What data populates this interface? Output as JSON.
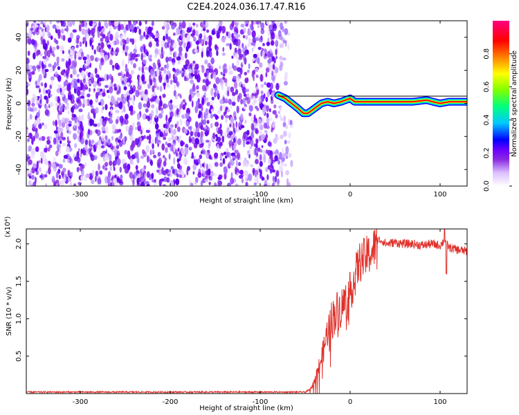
{
  "title": "C2E4.2024.036.17.47.R16",
  "chart_data": [
    {
      "type": "heatmap",
      "xlabel": "Height of straight line (km)",
      "ylabel": "Frequency (Hz)",
      "xlim": [
        -360,
        130
      ],
      "ylim": [
        -50,
        50
      ],
      "xticks": [
        -300,
        -200,
        -100,
        0,
        100
      ],
      "yticks": [
        -40,
        -20,
        0,
        20,
        40
      ],
      "noise_region": [
        -360,
        -65
      ],
      "signal_track": {
        "x": [
          -80,
          -72,
          -65,
          -58,
          -52,
          -47,
          -42,
          -37,
          -32,
          -25,
          -18,
          -10,
          -5,
          0,
          5,
          15,
          30,
          50,
          70,
          85,
          92,
          100,
          110,
          130
        ],
        "freq": [
          5,
          3,
          0,
          -3,
          -6,
          -6,
          -4,
          -2,
          0,
          1,
          0,
          1,
          2,
          3,
          1,
          1,
          1,
          1,
          1,
          2,
          1,
          0,
          1,
          1
        ]
      },
      "colorbar": {
        "label": "Normalized spectral amplitude",
        "range": [
          0,
          1
        ],
        "ticks": [
          "0.0",
          "0.2",
          "0.4",
          "0.6",
          "0.8"
        ],
        "colors": [
          "#ffffff",
          "#dcc0ff",
          "#8a2be2",
          "#6a00ff",
          "#0000ff",
          "#00c8ff",
          "#00ff80",
          "#80ff00",
          "#ffff00",
          "#ff8000",
          "#ff0000",
          "#ff0080"
        ]
      }
    },
    {
      "type": "line",
      "xlabel": "Height of straight line (km)",
      "ylabel": "SNR (10 * v/v)",
      "scale_label": "(x10⁴)",
      "xlim": [
        -360,
        130
      ],
      "ylim": [
        0,
        2.2
      ],
      "xticks": [
        -300,
        -200,
        -100,
        0,
        100
      ],
      "yticks": [
        0.5,
        1.0,
        1.5,
        2.0
      ],
      "yticklabels": [
        "0.5",
        "1.0",
        "1.5",
        "2.0"
      ],
      "color": "#e0302a",
      "series": [
        {
          "x": [
            -360,
            -300,
            -200,
            -100,
            -50,
            -45,
            -40,
            -35,
            -30,
            -25,
            -20,
            -15,
            -10,
            -5,
            0,
            5,
            10,
            15,
            20,
            25,
            30,
            35,
            40,
            50,
            60,
            70,
            80,
            90,
            100,
            105,
            110,
            120,
            130
          ],
          "y": [
            0.02,
            0.02,
            0.02,
            0.02,
            0.02,
            0.05,
            0.15,
            0.35,
            0.55,
            0.85,
            1.0,
            1.1,
            1.15,
            1.25,
            1.35,
            1.55,
            1.75,
            1.8,
            1.85,
            1.9,
            2.05,
            2.05,
            2.0,
            2.02,
            2.0,
            2.0,
            1.98,
            2.0,
            1.98,
            2.05,
            1.95,
            1.92,
            1.9
          ]
        }
      ]
    }
  ]
}
